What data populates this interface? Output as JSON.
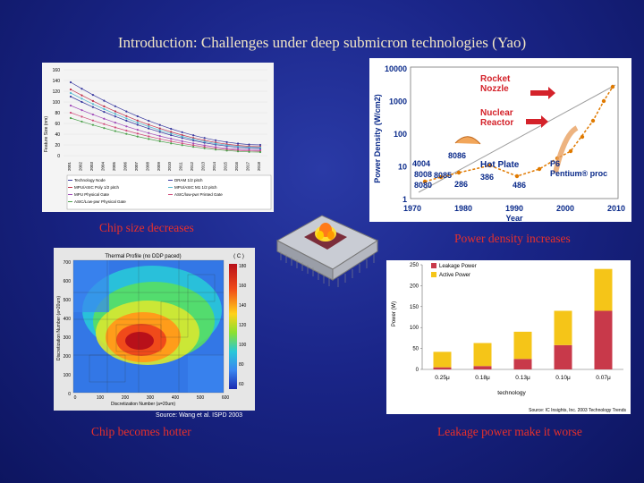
{
  "slide": {
    "title": "Introduction: Challenges under deep submicron technologies (Yao)",
    "captions": {
      "chip_size": "Chip size decreases",
      "power_density": "Power density increases",
      "hotter": "Chip becomes hotter",
      "leakage": "Leakage power make it worse"
    },
    "source_thermal": "Source: Wang et al. ISPD 2003"
  },
  "feature_chart": {
    "ylabel": "Feature Size (nm)",
    "yticks": [
      "160",
      "140",
      "120",
      "100",
      "80",
      "60",
      "40",
      "20",
      "0"
    ],
    "xticks": [
      "2001",
      "2002",
      "2003",
      "2004",
      "2005",
      "2006",
      "2007",
      "2008",
      "2009",
      "2010",
      "2011",
      "2012",
      "2013",
      "2014",
      "2015",
      "2016",
      "2017",
      "2018"
    ],
    "legend": [
      "Technology Node",
      "DRAM 1/2 pitch",
      "MPU/ASIC Poly 1/2 pitch",
      "MPU/ASIC M1 1/2 pitch",
      "MPU Physical Gate",
      "ASIC/low-pwr Printed Gate",
      "ASIC/Low-pwr Physical Gate"
    ]
  },
  "power_chart": {
    "ylabel": "Power Density (W/cm2)",
    "xlabel": "Year",
    "yticks": [
      "10000",
      "1000",
      "100",
      "10",
      "1"
    ],
    "xticks": [
      "1970",
      "1980",
      "1990",
      "2000",
      "2010"
    ],
    "annotations": {
      "rocket": "Rocket\nNozzle",
      "nuclear": "Nuclear\nReactor",
      "hotplate": "Hot Plate",
      "p6": "P6\nPentium® proc",
      "chips": [
        "8086",
        "4004",
        "8008",
        "8085",
        "8080",
        "286",
        "386",
        "486"
      ]
    }
  },
  "thermal_chart": {
    "title": "Thermal Profile (no DDP paced)",
    "ylabel": "Discretization Number (a=20um)",
    "xlabel": "Discretization Number (a=20um)",
    "unit": "( C )",
    "yticks": [
      "700",
      "600",
      "500",
      "400",
      "300",
      "200",
      "100",
      "0"
    ],
    "xticks": [
      "0",
      "100",
      "200",
      "300",
      "400",
      "500",
      "600"
    ],
    "scale": [
      "180",
      "160",
      "140",
      "120",
      "100",
      "80",
      "60"
    ]
  },
  "leakage_chart": {
    "ylabel": "Power (W)",
    "xlabel": "technology",
    "source": "Source: IC Insights, Inc. 2003 Technology Trends",
    "chart_data": {
      "type": "bar",
      "categories": [
        "0.25μ",
        "0.18μ",
        "0.13μ",
        "0.10μ",
        "0.07μ"
      ],
      "series": [
        {
          "name": "Leakage Power",
          "values": [
            5,
            8,
            25,
            58,
            140
          ]
        },
        {
          "name": "Active Power",
          "values": [
            37,
            55,
            65,
            82,
            100
          ]
        }
      ],
      "ylabel": "Power (W)",
      "xlabel": "technology",
      "ylim": [
        0,
        250
      ],
      "yticks": [
        0,
        50,
        100,
        150,
        200,
        250
      ],
      "legend": "top-left",
      "colors": {
        "Leakage Power": "#c8394a",
        "Active Power": "#f5c518"
      }
    }
  }
}
